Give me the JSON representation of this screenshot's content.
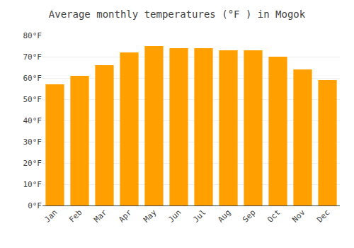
{
  "chart_data": {
    "type": "bar",
    "title": "Average monthly temperatures (°F ) in Mogok",
    "categories": [
      "Jan",
      "Feb",
      "Mar",
      "Apr",
      "May",
      "Jun",
      "Jul",
      "Aug",
      "Sep",
      "Oct",
      "Nov",
      "Dec"
    ],
    "values": [
      57,
      61,
      66,
      72,
      75,
      74,
      74,
      73,
      73,
      70,
      64,
      59
    ],
    "color": "#FFA000",
    "ylim": [
      0,
      80
    ],
    "yticks": [
      {
        "value": 0,
        "label": "0°F"
      },
      {
        "value": 10,
        "label": "10°F"
      },
      {
        "value": 20,
        "label": "20°F"
      },
      {
        "value": 30,
        "label": "30°F"
      },
      {
        "value": 40,
        "label": "40°F"
      },
      {
        "value": 50,
        "label": "50°F"
      },
      {
        "value": 60,
        "label": "60°F"
      },
      {
        "value": 70,
        "label": "70°F"
      },
      {
        "value": 80,
        "label": "80°F"
      }
    ],
    "grid": true
  }
}
